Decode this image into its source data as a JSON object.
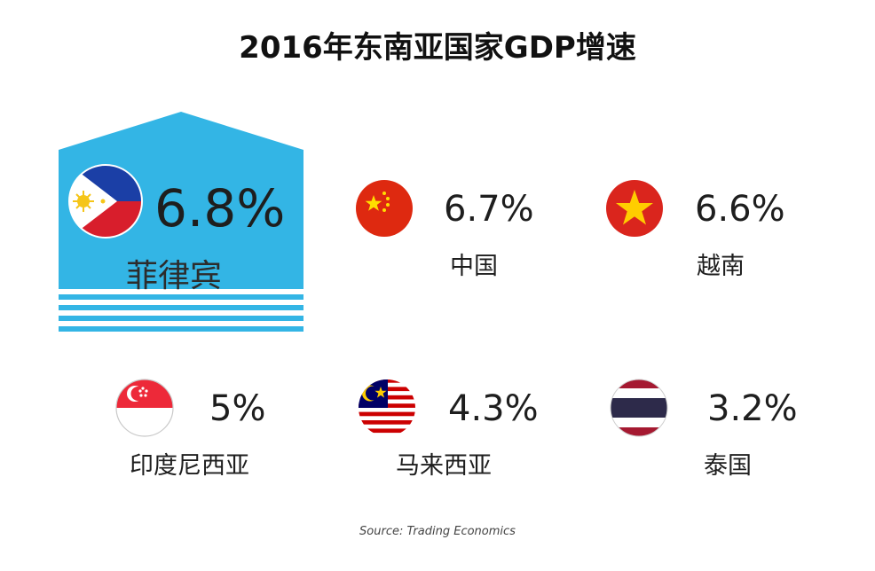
{
  "chart_data": {
    "type": "table",
    "title": "2016年东南亚国家GDP增速",
    "categories": [
      "菲律宾",
      "中国",
      "越南",
      "印度尼西亚",
      "马来西亚",
      "泰国"
    ],
    "values": [
      6.8,
      6.7,
      6.6,
      5,
      4.3,
      3.2
    ],
    "unit": "%",
    "highlight": "菲律宾",
    "items": [
      {
        "label": "菲律宾",
        "value_text": "6.8%",
        "flag_icon": "philippines-flag-icon"
      },
      {
        "label": "中国",
        "value_text": "6.7%",
        "flag_icon": "china-flag-icon"
      },
      {
        "label": "越南",
        "value_text": "6.6%",
        "flag_icon": "vietnam-flag-icon"
      },
      {
        "label": "印度尼西亚",
        "value_text": "5%",
        "flag_icon": "singapore-flag-icon"
      },
      {
        "label": "马来西亚",
        "value_text": "4.3%",
        "flag_icon": "malaysia-flag-icon"
      },
      {
        "label": "泰国",
        "value_text": "3.2%",
        "flag_icon": "thailand-flag-icon"
      }
    ],
    "source": "Source: Trading Economics"
  },
  "colors": {
    "highlight_panel": "#33b5e5",
    "text": "#1e1e1e"
  }
}
